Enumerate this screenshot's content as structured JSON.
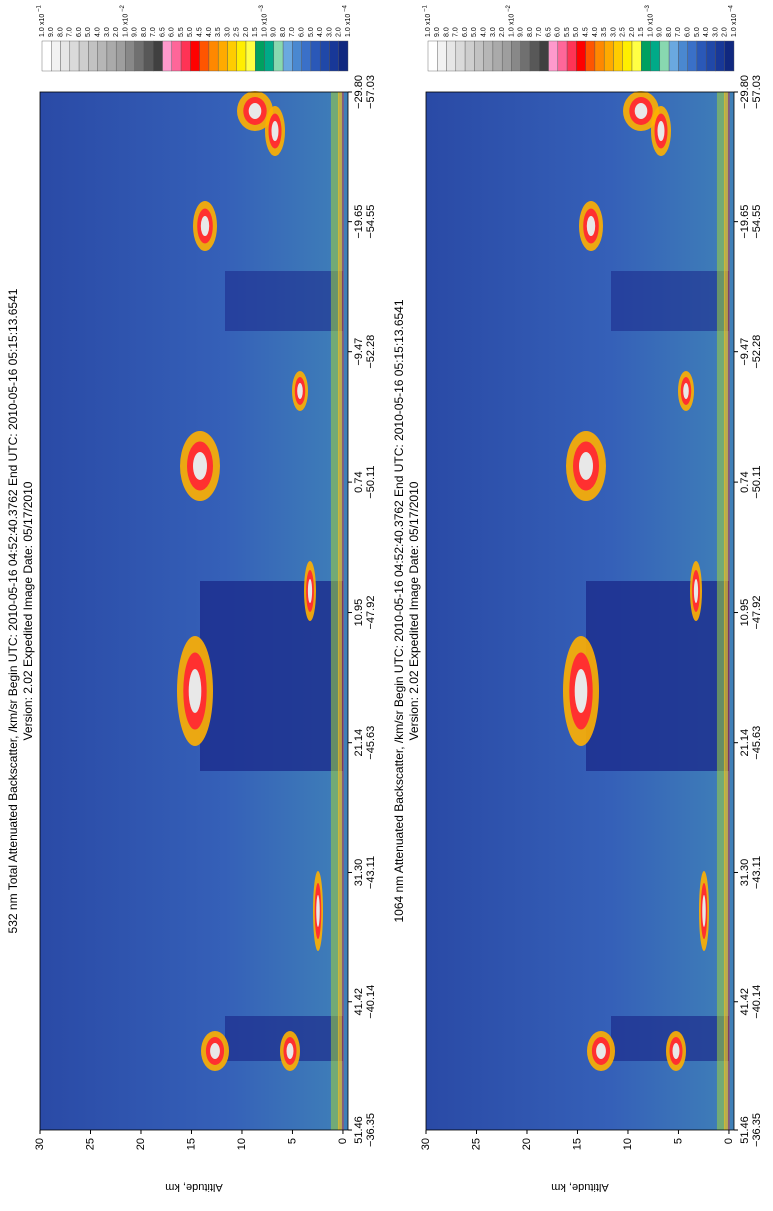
{
  "chart_data": [
    {
      "type": "heatmap",
      "title": "532 nm Total Attenuated Backscatter, /km/sr  Begin UTC: 2010-05-16 04:52:40.3762 End UTC: 2010-05-16 05:15:13.6541",
      "subtitle": "Version: 2.02 Expedited Image Date: 05/17/2010",
      "y_label": "Altitude, km",
      "ylim": [
        -0.5,
        30
      ],
      "yticks": [
        0,
        5,
        10,
        15,
        20,
        25,
        30
      ],
      "xlim": [
        51.46,
        -29.8
      ],
      "xticks": [
        51.46,
        41.42,
        {
          "value": 31.3,
          "label": "31.30"
        },
        21.14,
        10.95,
        0.74,
        {
          "value": -9.47,
          "label": "−9.47"
        },
        {
          "value": -19.65,
          "label": "−19.65"
        },
        {
          "value": -29.8,
          "label": "−29.80"
        }
      ],
      "xticks_secondary": [
        {
          "value": -36.35,
          "label": "−36.35"
        },
        {
          "value": -40.14,
          "label": "−40.14"
        },
        {
          "value": -43.11,
          "label": "−43.11"
        },
        {
          "value": -45.63,
          "label": "−45.63"
        },
        {
          "value": -47.92,
          "label": "−47.92"
        },
        {
          "value": -50.11,
          "label": "−50.11"
        },
        {
          "value": -52.28,
          "label": "−52.28"
        },
        {
          "value": -54.55,
          "label": "−54.55"
        },
        {
          "value": -57.03,
          "label": "−57.03"
        }
      ],
      "colorbar": {
        "decades": [
          {
            "base": "x10",
            "exponent": "−1",
            "levels": [
              {
                "value": 0.1,
                "label": "1.0"
              },
              {
                "value": 0.09,
                "label": "9.0"
              },
              {
                "value": 0.08,
                "label": "8.0"
              },
              {
                "value": 0.07,
                "label": "7.0"
              },
              {
                "value": 0.06,
                "label": "6.0"
              },
              {
                "value": 0.05,
                "label": "5.0"
              },
              {
                "value": 0.04,
                "label": "4.0"
              },
              {
                "value": 0.03,
                "label": "3.0"
              },
              {
                "value": 0.02,
                "label": "2.0"
              }
            ]
          },
          {
            "base": "x10",
            "exponent": "−2",
            "levels": [
              {
                "value": 0.01,
                "label": "1.0"
              },
              {
                "value": 0.009,
                "label": "9.0"
              },
              {
                "value": 0.008,
                "label": "8.0"
              },
              {
                "value": 0.007,
                "label": "7.0"
              },
              {
                "value": 0.0065,
                "label": "6.5"
              },
              {
                "value": 0.006,
                "label": "6.0"
              },
              {
                "value": 0.0055,
                "label": "5.5"
              },
              {
                "value": 0.005,
                "label": "5.0"
              },
              {
                "value": 0.0045,
                "label": "4.5"
              },
              {
                "value": 0.004,
                "label": "4.0"
              },
              {
                "value": 0.0035,
                "label": "3.5"
              },
              {
                "value": 0.003,
                "label": "3.0"
              },
              {
                "value": 0.0025,
                "label": "2.5"
              },
              {
                "value": 0.002,
                "label": "2.0"
              },
              {
                "value": 0.0015,
                "label": "1.5"
              }
            ]
          },
          {
            "base": "x10",
            "exponent": "−3",
            "levels": [
              {
                "value": 0.001,
                "label": "1.0"
              },
              {
                "value": 0.0009,
                "label": "9.0"
              },
              {
                "value": 0.0008,
                "label": "8.0"
              },
              {
                "value": 0.0007,
                "label": "7.0"
              },
              {
                "value": 0.0006,
                "label": "6.0"
              },
              {
                "value": 0.0005,
                "label": "5.0"
              },
              {
                "value": 0.0004,
                "label": "4.0"
              },
              {
                "value": 0.0003,
                "label": "3.0"
              },
              {
                "value": 0.0002,
                "label": "2.0"
              }
            ]
          },
          {
            "base": "x10",
            "exponent": "−4",
            "levels": [
              {
                "value": 0.0001,
                "label": "1.0"
              }
            ]
          }
        ],
        "colors": [
          "#ffffff",
          "#f2f2f2",
          "#e6e6e6",
          "#dadada",
          "#cecece",
          "#c2c2c2",
          "#b6b6b6",
          "#aaaaaa",
          "#9e9e9e",
          "#888888",
          "#707070",
          "#585858",
          "#404040",
          "#ff99cc",
          "#ff6699",
          "#ff3355",
          "#ff0000",
          "#ff5500",
          "#ff8800",
          "#ffaa00",
          "#ffcc00",
          "#ffee00",
          "#ffff44",
          "#00a060",
          "#00aa88",
          "#88d8b0",
          "#6aa8e0",
          "#4a88d0",
          "#3a70c8",
          "#2a58b8",
          "#2048a8",
          "#183898",
          "#102880"
        ]
      }
    },
    {
      "type": "heatmap",
      "title": "1064 nm Attenuated Backscatter, /km/sr  Begin UTC: 2010-05-16 04:52:40.3762 End UTC: 2010-05-16 05:15:13.6541",
      "subtitle": "Version: 2.02 Expedited Image Date: 05/17/2010",
      "y_label": "Altitude, km",
      "ylim": [
        -0.5,
        30
      ],
      "yticks": [
        0,
        5,
        10,
        15,
        20,
        25,
        30
      ],
      "xlim": [
        51.46,
        -29.8
      ],
      "xticks": [
        51.46,
        41.42,
        {
          "value": 31.3,
          "label": "31.30"
        },
        21.14,
        10.95,
        0.74,
        {
          "value": -9.47,
          "label": "−9.47"
        },
        {
          "value": -19.65,
          "label": "−19.65"
        },
        {
          "value": -29.8,
          "label": "−29.80"
        }
      ],
      "xticks_secondary": [
        {
          "value": -36.35,
          "label": "−36.35"
        },
        {
          "value": -40.14,
          "label": "−40.14"
        },
        {
          "value": -43.11,
          "label": "−43.11"
        },
        {
          "value": -45.63,
          "label": "−45.63"
        },
        {
          "value": -47.92,
          "label": "−47.92"
        },
        {
          "value": -50.11,
          "label": "−50.11"
        },
        {
          "value": -52.28,
          "label": "−52.28"
        },
        {
          "value": -54.55,
          "label": "−54.55"
        },
        {
          "value": -57.03,
          "label": "−57.03"
        }
      ],
      "colorbar": {
        "decades": [
          {
            "base": "x10",
            "exponent": "−1",
            "levels": [
              {
                "value": 0.1,
                "label": "1.0"
              },
              {
                "value": 0.09,
                "label": "9.0"
              },
              {
                "value": 0.08,
                "label": "8.0"
              },
              {
                "value": 0.07,
                "label": "7.0"
              },
              {
                "value": 0.06,
                "label": "6.0"
              },
              {
                "value": 0.05,
                "label": "5.0"
              },
              {
                "value": 0.04,
                "label": "4.0"
              },
              {
                "value": 0.03,
                "label": "3.0"
              },
              {
                "value": 0.02,
                "label": "2.0"
              }
            ]
          },
          {
            "base": "x10",
            "exponent": "−2",
            "levels": [
              {
                "value": 0.01,
                "label": "1.0"
              },
              {
                "value": 0.009,
                "label": "9.0"
              },
              {
                "value": 0.008,
                "label": "8.0"
              },
              {
                "value": 0.007,
                "label": "7.0"
              },
              {
                "value": 0.0065,
                "label": "6.5"
              },
              {
                "value": 0.006,
                "label": "6.0"
              },
              {
                "value": 0.0055,
                "label": "5.5"
              },
              {
                "value": 0.005,
                "label": "5.0"
              },
              {
                "value": 0.0045,
                "label": "4.5"
              },
              {
                "value": 0.004,
                "label": "4.0"
              },
              {
                "value": 0.0035,
                "label": "3.5"
              },
              {
                "value": 0.003,
                "label": "3.0"
              },
              {
                "value": 0.0025,
                "label": "2.5"
              },
              {
                "value": 0.002,
                "label": "2.0"
              },
              {
                "value": 0.0015,
                "label": "1.5"
              }
            ]
          },
          {
            "base": "x10",
            "exponent": "−3",
            "levels": [
              {
                "value": 0.001,
                "label": "1.0"
              },
              {
                "value": 0.0009,
                "label": "9.0"
              },
              {
                "value": 0.0008,
                "label": "8.0"
              },
              {
                "value": 0.0007,
                "label": "7.0"
              },
              {
                "value": 0.0006,
                "label": "6.0"
              },
              {
                "value": 0.0005,
                "label": "5.0"
              },
              {
                "value": 0.0004,
                "label": "4.0"
              },
              {
                "value": 0.0003,
                "label": "3.0"
              },
              {
                "value": 0.0002,
                "label": "2.0"
              }
            ]
          },
          {
            "base": "x10",
            "exponent": "−4",
            "levels": [
              {
                "value": 0.0001,
                "label": "1.0"
              }
            ]
          }
        ],
        "colors": [
          "#ffffff",
          "#f2f2f2",
          "#e6e6e6",
          "#dadada",
          "#cecece",
          "#c2c2c2",
          "#b6b6b6",
          "#aaaaaa",
          "#9e9e9e",
          "#888888",
          "#707070",
          "#585858",
          "#404040",
          "#ff99cc",
          "#ff6699",
          "#ff3355",
          "#ff0000",
          "#ff5500",
          "#ff8800",
          "#ffaa00",
          "#ffcc00",
          "#ffee00",
          "#ffff44",
          "#00a060",
          "#00aa88",
          "#88d8b0",
          "#6aa8e0",
          "#4a88d0",
          "#3a70c8",
          "#2a58b8",
          "#2048a8",
          "#183898",
          "#102880"
        ]
      }
    }
  ]
}
